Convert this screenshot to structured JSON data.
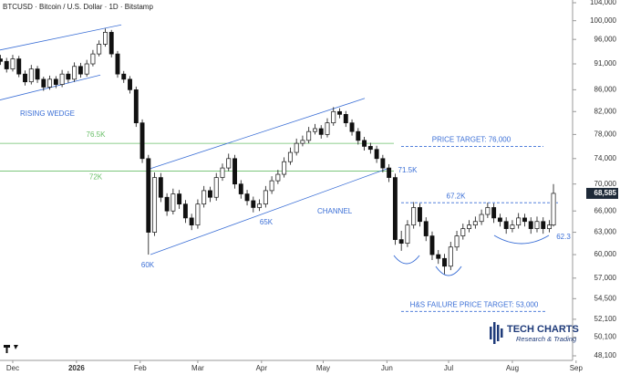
{
  "chart_data": {
    "type": "candlestick",
    "title": "BTCUSD · Bitcoin / U.S. Dollar · 1D · Bitstamp",
    "log_scale": true,
    "up_color": "#ffffff",
    "down_color": "#111111",
    "ylim": [
      48100,
      104000
    ],
    "yticks": [
      {
        "value": 104000,
        "label": "104,000"
      },
      {
        "value": 100000,
        "label": "100,000"
      },
      {
        "value": 96000,
        "label": "96,000"
      },
      {
        "value": 91000,
        "label": "91,000"
      },
      {
        "value": 86000,
        "label": "86,000"
      },
      {
        "value": 82000,
        "label": "82,000"
      },
      {
        "value": 78000,
        "label": "78,000"
      },
      {
        "value": 74000,
        "label": "74,000"
      },
      {
        "value": 70000,
        "label": "70,000"
      },
      {
        "value": 66000,
        "label": "66,000"
      },
      {
        "value": 63000,
        "label": "63,000"
      },
      {
        "value": 60000,
        "label": "60,000"
      },
      {
        "value": 57000,
        "label": "57,000"
      },
      {
        "value": 54500,
        "label": "54,500"
      },
      {
        "value": 52100,
        "label": "52,100"
      },
      {
        "value": 50100,
        "label": "50,100"
      },
      {
        "value": 48100,
        "label": "48,100"
      }
    ],
    "xlim": [
      -6.2,
      272.3
    ],
    "xticks": [
      {
        "value": 0,
        "label": "Dec"
      },
      {
        "value": 31,
        "label": "2026"
      },
      {
        "value": 62,
        "label": "Feb"
      },
      {
        "value": 90,
        "label": "Mar"
      },
      {
        "value": 121,
        "label": "Apr"
      },
      {
        "value": 151,
        "label": "May"
      },
      {
        "value": 182,
        "label": "Jun"
      },
      {
        "value": 212,
        "label": "Jul"
      },
      {
        "value": 243,
        "label": "Aug"
      },
      {
        "value": 274,
        "label": "Sep"
      }
    ],
    "x": [
      -6,
      -3,
      0,
      3,
      6,
      9,
      12,
      15,
      18,
      21,
      24,
      27,
      30,
      33,
      36,
      39,
      42,
      45,
      48,
      51,
      54,
      57,
      60,
      63,
      66,
      69,
      72,
      75,
      78,
      81,
      84,
      87,
      90,
      93,
      96,
      99,
      102,
      105,
      108,
      111,
      114,
      117,
      120,
      123,
      126,
      129,
      132,
      135,
      138,
      141,
      144,
      147,
      150,
      153,
      156,
      159,
      162,
      165,
      168,
      171,
      174,
      177,
      180,
      183,
      186,
      189,
      192,
      195,
      198,
      201,
      204,
      207,
      210,
      213,
      216,
      219,
      222,
      225,
      228,
      231,
      234,
      237,
      240,
      243,
      246,
      249,
      252,
      255,
      258,
      261,
      263
    ],
    "candles": [
      [
        92000,
        92800,
        90800,
        91500
      ],
      [
        91500,
        92200,
        89300,
        90000
      ],
      [
        90000,
        92800,
        89500,
        92000
      ],
      [
        92000,
        92600,
        88400,
        89000
      ],
      [
        89000,
        89700,
        86800,
        87500
      ],
      [
        87500,
        90800,
        87000,
        90000
      ],
      [
        90000,
        90600,
        87300,
        88000
      ],
      [
        88000,
        88500,
        85800,
        86500
      ],
      [
        86500,
        88700,
        86000,
        88000
      ],
      [
        88000,
        88600,
        86300,
        87000
      ],
      [
        87000,
        89800,
        86500,
        89000
      ],
      [
        89000,
        89600,
        87300,
        88000
      ],
      [
        88000,
        91300,
        87500,
        90500
      ],
      [
        90500,
        91200,
        88300,
        89000
      ],
      [
        89000,
        91800,
        88500,
        91000
      ],
      [
        91000,
        93800,
        90500,
        93000
      ],
      [
        93000,
        95800,
        92500,
        95000
      ],
      [
        95000,
        98300,
        94500,
        97500
      ],
      [
        97500,
        98000,
        92300,
        93000
      ],
      [
        93000,
        93600,
        88300,
        89000
      ],
      [
        89000,
        89600,
        87300,
        88000
      ],
      [
        88000,
        88600,
        85300,
        86000
      ],
      [
        86000,
        86600,
        79300,
        80000
      ],
      [
        80000,
        80600,
        73300,
        74000
      ],
      [
        74000,
        74600,
        60000,
        63000
      ],
      [
        63000,
        71800,
        62500,
        71000
      ],
      [
        71000,
        71700,
        67300,
        68000
      ],
      [
        68000,
        68600,
        65300,
        66000
      ],
      [
        66000,
        69300,
        65500,
        68500
      ],
      [
        68500,
        69100,
        66300,
        67000
      ],
      [
        67000,
        67600,
        64300,
        65000
      ],
      [
        65000,
        65600,
        63300,
        64000
      ],
      [
        64000,
        67700,
        63500,
        67000
      ],
      [
        67000,
        69700,
        66500,
        69000
      ],
      [
        69000,
        69600,
        67300,
        68000
      ],
      [
        68000,
        71700,
        67500,
        71000
      ],
      [
        71000,
        73200,
        70500,
        72500
      ],
      [
        72500,
        74800,
        72000,
        74000
      ],
      [
        74000,
        74600,
        69300,
        70000
      ],
      [
        70000,
        70600,
        67800,
        68500
      ],
      [
        68500,
        69100,
        66800,
        67500
      ],
      [
        67500,
        68100,
        65800,
        66500
      ],
      [
        66500,
        67700,
        66000,
        67000
      ],
      [
        67000,
        69700,
        66500,
        69000
      ],
      [
        69000,
        71200,
        68500,
        70500
      ],
      [
        70500,
        72200,
        70000,
        71500
      ],
      [
        71500,
        74200,
        71000,
        73500
      ],
      [
        73500,
        75800,
        73000,
        75000
      ],
      [
        75000,
        77300,
        74500,
        76500
      ],
      [
        76500,
        77800,
        76000,
        77000
      ],
      [
        77000,
        79300,
        76500,
        78500
      ],
      [
        78500,
        79800,
        78000,
        79000
      ],
      [
        79000,
        79600,
        77300,
        78000
      ],
      [
        78000,
        80800,
        77500,
        80000
      ],
      [
        80000,
        82800,
        79500,
        82000
      ],
      [
        82000,
        82600,
        80800,
        81500
      ],
      [
        81500,
        82100,
        79300,
        80000
      ],
      [
        80000,
        80600,
        77800,
        78500
      ],
      [
        78500,
        79100,
        76300,
        77000
      ],
      [
        77000,
        77600,
        75300,
        76000
      ],
      [
        76000,
        76600,
        74800,
        75500
      ],
      [
        75500,
        76100,
        73300,
        74000
      ],
      [
        74000,
        74600,
        71800,
        72500
      ],
      [
        72500,
        73100,
        70300,
        71000
      ],
      [
        71000,
        71600,
        61300,
        62000
      ],
      [
        62000,
        63200,
        60500,
        61500
      ],
      [
        61500,
        64700,
        61000,
        64000
      ],
      [
        64000,
        67300,
        63500,
        66500
      ],
      [
        66500,
        67100,
        63800,
        64500
      ],
      [
        64500,
        65100,
        61800,
        62500
      ],
      [
        62500,
        63100,
        59300,
        60000
      ],
      [
        60000,
        60600,
        58800,
        59500
      ],
      [
        59500,
        60100,
        57500,
        58500
      ],
      [
        58500,
        61700,
        58000,
        61000
      ],
      [
        61000,
        63200,
        60500,
        62500
      ],
      [
        62500,
        64200,
        62000,
        63500
      ],
      [
        63500,
        64700,
        63000,
        64000
      ],
      [
        64000,
        65200,
        63500,
        64500
      ],
      [
        64500,
        66200,
        64000,
        65500
      ],
      [
        65500,
        67200,
        65000,
        66500
      ],
      [
        66500,
        67100,
        64300,
        65000
      ],
      [
        65000,
        65600,
        63800,
        64500
      ],
      [
        64500,
        65100,
        62800,
        63500
      ],
      [
        63500,
        64700,
        63000,
        64000
      ],
      [
        64000,
        65700,
        63500,
        65000
      ],
      [
        65000,
        65600,
        63800,
        64500
      ],
      [
        64500,
        65100,
        62800,
        63500
      ],
      [
        63500,
        65200,
        63000,
        64500
      ],
      [
        64500,
        65100,
        62800,
        63500
      ],
      [
        63500,
        64700,
        63000,
        64000
      ],
      [
        64000,
        70000,
        63800,
        68585
      ]
    ],
    "last_price_label": "68,585",
    "levels": [
      {
        "label": "76.5K",
        "value": 76500,
        "color": "#6abf69",
        "style": "solid"
      },
      {
        "label": "72K",
        "value": 72000,
        "color": "#6abf69",
        "style": "solid"
      },
      {
        "label": "PRICE TARGET: 76,000",
        "value": 76000,
        "color": "#3b6fd6",
        "style": "dashed"
      },
      {
        "label": "67.2K",
        "value": 67200,
        "color": "#3b6fd6",
        "style": "dashed"
      },
      {
        "label": "H&S FAILURE PRICE TARGET: 53,000",
        "value": 53000,
        "color": "#3b6fd6",
        "style": "dashed"
      }
    ],
    "trendlines": [
      {
        "label": "RISING WEDGE",
        "color": "#3b6fd6",
        "points": [
          [
            -6.2,
            93800
          ],
          [
            52.8,
            99100
          ]
        ]
      },
      {
        "color": "#3b6fd6",
        "points": [
          [
            -6.2,
            84100
          ],
          [
            42.6,
            88800
          ]
        ]
      },
      {
        "label": "CHANNEL",
        "color": "#3b6fd6",
        "points": [
          [
            67,
            60000
          ],
          [
            182.3,
            72400
          ]
        ]
      },
      {
        "color": "#3b6fd6",
        "points": [
          [
            67,
            72400
          ],
          [
            171.2,
            84400
          ]
        ]
      }
    ],
    "annotations": [
      "60K",
      "65K",
      "71.5K",
      "62.3"
    ],
    "logo": {
      "name": "TECH CHARTS",
      "tagline": "Research & Trading"
    }
  }
}
